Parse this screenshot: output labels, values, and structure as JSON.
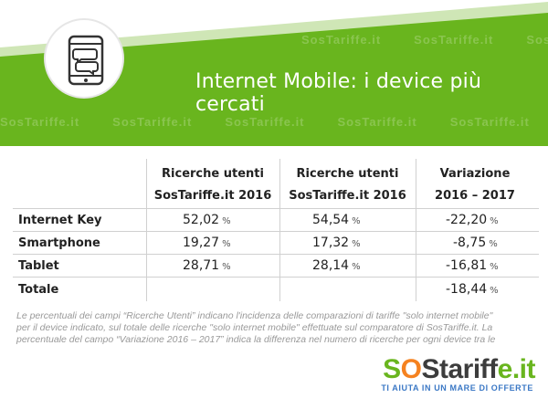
{
  "header": {
    "title": "Internet Mobile: i device più cercati",
    "watermark": "SosTariffe.it",
    "colors": {
      "green": "#69b51e",
      "green_light": "#cfe6b6"
    },
    "icon": "smartphone-chat-icon"
  },
  "table": {
    "columns": [
      {
        "line1": "Ricerche utenti",
        "line2": "SosTariffe.it 2016"
      },
      {
        "line1": "Ricerche utenti",
        "line2": "SosTariffe.it 2016"
      },
      {
        "line1": "Variazione",
        "line2": "2016 – 2017"
      }
    ],
    "rows": [
      {
        "label": "Internet Key",
        "c1": "52,02",
        "c2": "54,54",
        "c3": "-22,20"
      },
      {
        "label": "Smartphone",
        "c1": "19,27",
        "c2": "17,32",
        "c3": "-8,75"
      },
      {
        "label": "Tablet",
        "c1": "28,71",
        "c2": "28,14",
        "c3": "-16,81"
      },
      {
        "label": "Totale",
        "c1": "",
        "c2": "",
        "c3": "-18,44"
      }
    ],
    "percent_sign": "%"
  },
  "note": {
    "line1": "Le percentuali dei campi “Ricerche Utenti” indicano l'incidenza delle comparazioni di tariffe \"solo internet mobile\"",
    "line2": "per il device indicato, sul totale delle ricerche \"solo internet mobile\"  effettuate sul comparatore di SosTariffe.it. La",
    "line3": "percentuale del campo “Variazione 2016 – 2017” indica la differenza nel numero di ricerche per ogni device tra le"
  },
  "logo": {
    "part1": "S",
    "part2": "O",
    "part3": "Starif",
    "part4": "f",
    "part5": "e.it",
    "tagline": "TI AIUTA IN UN MARE DI OFFERTE"
  }
}
